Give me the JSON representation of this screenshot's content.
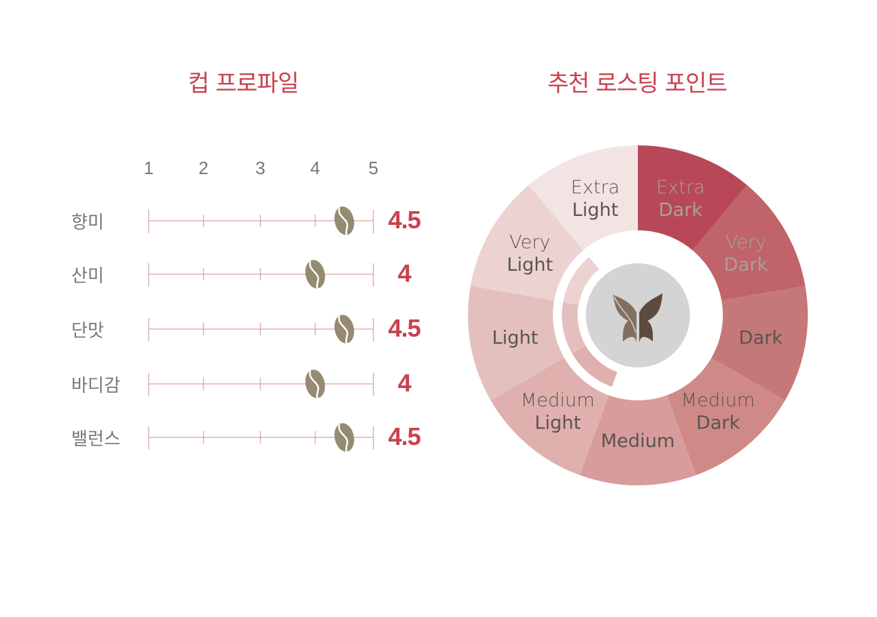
{
  "cup_profile": {
    "title": "컵 프로파일",
    "scale": [
      "1",
      "2",
      "3",
      "4",
      "5"
    ],
    "scale_min": 1,
    "scale_max": 5,
    "rows": [
      {
        "label": "향미",
        "value": 4.5,
        "value_text": "4.5"
      },
      {
        "label": "산미",
        "value": 4,
        "value_text": "4"
      },
      {
        "label": "단맛",
        "value": 4.5,
        "value_text": "4.5"
      },
      {
        "label": "바디감",
        "value": 4,
        "value_text": "4"
      },
      {
        "label": "밸런스",
        "value": 4.5,
        "value_text": "4.5"
      }
    ],
    "marker_icon": "coffee-bean-icon",
    "accent_color": "#c8424e",
    "bean_color": "#958a72"
  },
  "roasting": {
    "title": "추천 로스팅 포인트",
    "center_icon": "butterfly-logo-icon",
    "segments": [
      {
        "line1": "Extra",
        "line2": "Dark",
        "color": "#b84858",
        "text_color": "#a9a19b"
      },
      {
        "line1": "Very",
        "line2": "Dark",
        "color": "#c0646a",
        "text_color": "#a9a19b"
      },
      {
        "line1": "Dark",
        "line2": "",
        "color": "#c57878",
        "text_color": "#5a5450"
      },
      {
        "line1": "Medium",
        "line2": "Dark",
        "color": "#cf8a87",
        "text_color": "#5a5450"
      },
      {
        "line1": "Medium",
        "line2": "",
        "color": "#d79c9b",
        "text_color": "#5a5450"
      },
      {
        "line1": "Medium",
        "line2": "Light",
        "color": "#dfb0ad",
        "text_color": "#5a5450"
      },
      {
        "line1": "Light",
        "line2": "",
        "color": "#e3c0bd",
        "text_color": "#5a5450"
      },
      {
        "line1": "Very",
        "line2": "Light",
        "color": "#ecd3d1",
        "text_color": "#5a5450"
      },
      {
        "line1": "Extra",
        "line2": "Light",
        "color": "#f3e4e4",
        "text_color": "#5a5450"
      }
    ],
    "recommended": [
      "Medium Light",
      "Light",
      "Very Light"
    ]
  }
}
